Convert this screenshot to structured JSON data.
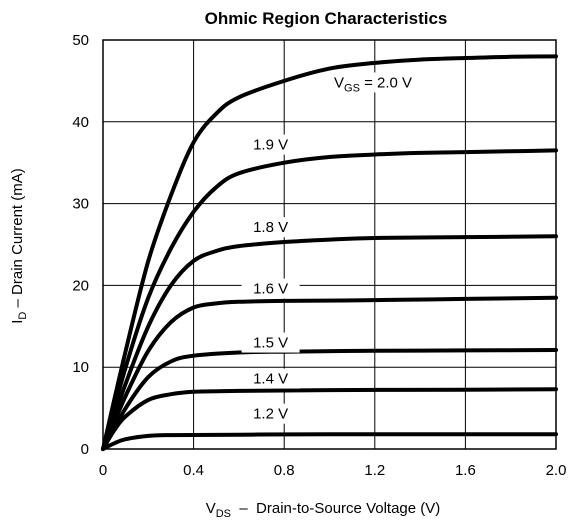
{
  "chart_data": {
    "type": "line",
    "title": "Ohmic Region Characteristics",
    "xlabel": {
      "main": "V",
      "sub": "DS",
      "rest": "  –  Drain-to-Source Voltage (V)"
    },
    "ylabel": {
      "main": "I",
      "sub": "D",
      "rest": " – Drain Current (mA)"
    },
    "xlim": [
      0,
      2.0
    ],
    "ylim": [
      0,
      50
    ],
    "x_ticks": [
      0,
      0.4,
      0.8,
      1.2,
      1.6,
      2.0
    ],
    "x_tick_labels": [
      "0",
      "0.4",
      "0.8",
      "1.2",
      "1.6",
      "2.0"
    ],
    "y_ticks": [
      0,
      10,
      20,
      30,
      40,
      50
    ],
    "y_tick_labels": [
      "0",
      "10",
      "20",
      "30",
      "40",
      "50"
    ],
    "grid": true,
    "series": [
      {
        "name": "V_GS = 2.0 V",
        "label": {
          "main": "V",
          "sub": "GS",
          "rest": " = 2.0 V"
        },
        "points": [
          [
            0,
            0
          ],
          [
            0.1,
            12
          ],
          [
            0.2,
            23
          ],
          [
            0.3,
            31
          ],
          [
            0.4,
            37.5
          ],
          [
            0.5,
            41
          ],
          [
            0.6,
            43
          ],
          [
            0.8,
            45
          ],
          [
            1.0,
            46.5
          ],
          [
            1.2,
            47.2
          ],
          [
            1.4,
            47.6
          ],
          [
            1.6,
            47.8
          ],
          [
            1.8,
            47.95
          ],
          [
            2.0,
            48
          ]
        ]
      },
      {
        "name": "1.9 V",
        "label": {
          "main": "1.9 V"
        },
        "points": [
          [
            0,
            0
          ],
          [
            0.1,
            10
          ],
          [
            0.2,
            18.5
          ],
          [
            0.3,
            24.5
          ],
          [
            0.4,
            29
          ],
          [
            0.5,
            32
          ],
          [
            0.6,
            33.7
          ],
          [
            0.8,
            35
          ],
          [
            1.0,
            35.7
          ],
          [
            1.2,
            36
          ],
          [
            1.4,
            36.2
          ],
          [
            1.6,
            36.3
          ],
          [
            1.8,
            36.4
          ],
          [
            2.0,
            36.5
          ]
        ]
      },
      {
        "name": "1.8 V",
        "label": {
          "main": "1.8 V"
        },
        "points": [
          [
            0,
            0
          ],
          [
            0.1,
            8
          ],
          [
            0.2,
            15
          ],
          [
            0.3,
            20
          ],
          [
            0.4,
            23
          ],
          [
            0.5,
            24.2
          ],
          [
            0.6,
            24.8
          ],
          [
            0.8,
            25.3
          ],
          [
            1.0,
            25.6
          ],
          [
            1.2,
            25.8
          ],
          [
            1.6,
            25.9
          ],
          [
            2.0,
            26
          ]
        ]
      },
      {
        "name": "1.6 V",
        "label": {
          "main": "1.6 V"
        },
        "points": [
          [
            0,
            0
          ],
          [
            0.1,
            6.5
          ],
          [
            0.2,
            12
          ],
          [
            0.3,
            15.5
          ],
          [
            0.4,
            17.3
          ],
          [
            0.5,
            17.8
          ],
          [
            0.6,
            18
          ],
          [
            0.8,
            18.1
          ],
          [
            1.2,
            18.2
          ],
          [
            1.6,
            18.35
          ],
          [
            2.0,
            18.5
          ]
        ]
      },
      {
        "name": "1.5 V",
        "label": {
          "main": "1.5 V"
        },
        "points": [
          [
            0,
            0
          ],
          [
            0.1,
            5
          ],
          [
            0.2,
            8.8
          ],
          [
            0.3,
            10.7
          ],
          [
            0.4,
            11.4
          ],
          [
            0.6,
            11.8
          ],
          [
            0.8,
            11.9
          ],
          [
            1.2,
            12
          ],
          [
            1.6,
            12.05
          ],
          [
            2.0,
            12.1
          ]
        ]
      },
      {
        "name": "1.4 V",
        "label": {
          "main": "1.4 V"
        },
        "points": [
          [
            0,
            0
          ],
          [
            0.05,
            2.3
          ],
          [
            0.1,
            4
          ],
          [
            0.2,
            6
          ],
          [
            0.3,
            6.7
          ],
          [
            0.4,
            7
          ],
          [
            0.6,
            7.1
          ],
          [
            1.0,
            7.2
          ],
          [
            1.6,
            7.25
          ],
          [
            2.0,
            7.3
          ]
        ]
      },
      {
        "name": "1.2 V",
        "label": {
          "main": "1.2 V"
        },
        "points": [
          [
            0,
            0
          ],
          [
            0.05,
            0.7
          ],
          [
            0.1,
            1.2
          ],
          [
            0.2,
            1.6
          ],
          [
            0.3,
            1.7
          ],
          [
            0.6,
            1.75
          ],
          [
            1.0,
            1.8
          ],
          [
            2.0,
            1.8
          ]
        ]
      }
    ]
  }
}
